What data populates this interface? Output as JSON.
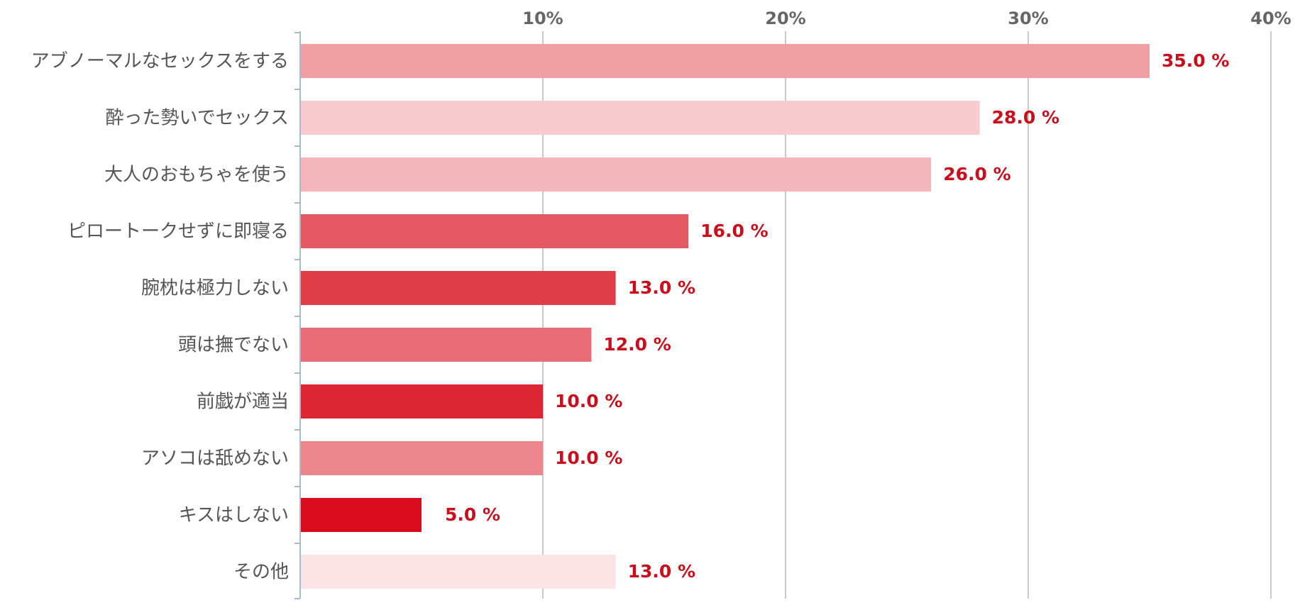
{
  "chart_data": {
    "type": "bar",
    "orientation": "horizontal",
    "categories": [
      "アブノーマルなセックスをする",
      "酔った勢いでセックス",
      "大人のおもちゃを使う",
      "ピロートークせずに即寝る",
      "腕枕は極力しない",
      "頭は撫でない",
      "前戯が適当",
      "アソコは舐めない",
      "キスはしない",
      "その他"
    ],
    "values": [
      35.0,
      28.0,
      26.0,
      16.0,
      13.0,
      12.0,
      10.0,
      10.0,
      5.0,
      13.0
    ],
    "value_labels": [
      "35.0 %",
      "28.0 %",
      "26.0 %",
      "16.0 %",
      "13.0 %",
      "12.0 %",
      "10.0 %",
      "10.0 %",
      "5.0 %",
      "13.0 %"
    ],
    "bar_colors": [
      "#f0a0a5",
      "#f7ccd1",
      "#f3b6ba",
      "#e45863",
      "#df3d4a",
      "#e86d76",
      "#dc2634",
      "#ec868d",
      "#d80c1c",
      "#fbe4e6"
    ],
    "value_label_color": "#cc0e1c",
    "x_axis": {
      "ticks": [
        10,
        20,
        30,
        40
      ],
      "tick_labels": [
        "10%",
        "20%",
        "30%",
        "40%"
      ],
      "range": [
        0,
        40
      ],
      "position": "top",
      "grid": true
    },
    "title": "",
    "xlabel": "",
    "ylabel": "",
    "legend": "none"
  }
}
